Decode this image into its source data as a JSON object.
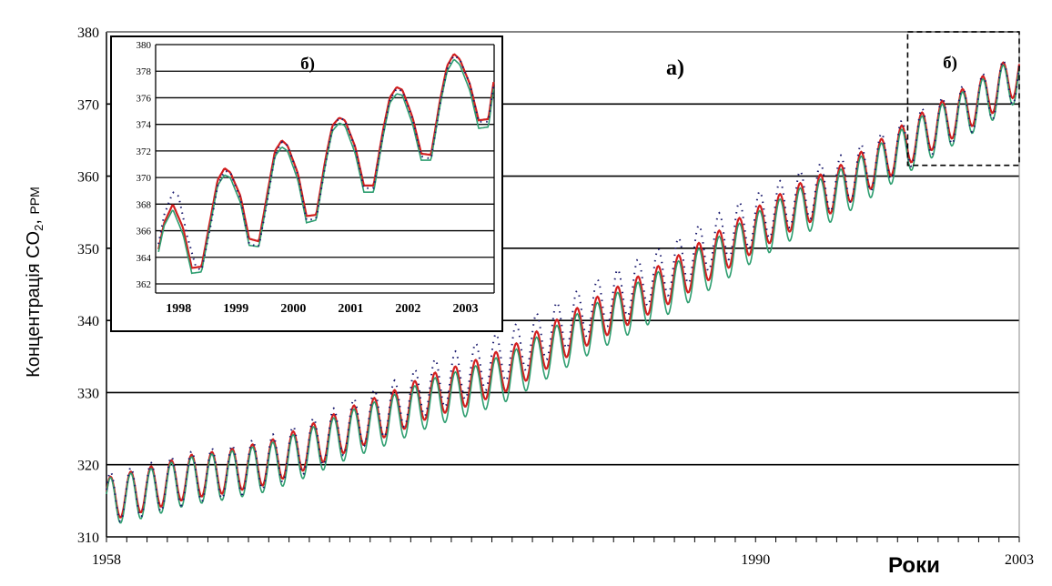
{
  "chart_data": [
    {
      "type": "line",
      "panel_label": "а)",
      "xlabel": "Роки",
      "ylabel": {
        "prefix": "Концентрація CO",
        "sub": "2",
        "suffix": ", ",
        "unit": "PPM"
      },
      "x_tick_labels": [
        "1958",
        "1990",
        "2003"
      ],
      "y_tick_labels": [
        "310",
        "320",
        "330",
        "340",
        "350",
        "360",
        "370",
        "380"
      ],
      "xlim": [
        1958,
        2003
      ],
      "ylim": [
        310,
        380
      ],
      "grid": "horizontal",
      "zoom_box_label": "б)",
      "zoom_box_range": {
        "x": [
          1997.5,
          2003
        ],
        "y": [
          361.5,
          380
        ]
      },
      "series": [
        {
          "color": "#d21f1f",
          "style": "solid",
          "seasonal_amplitude": 3.0,
          "x": [
            1958,
            1960,
            1962,
            1964,
            1966,
            1968,
            1970,
            1972,
            1974,
            1976,
            1978,
            1980,
            1982,
            1984,
            1986,
            1988,
            1990,
            1992,
            1994,
            1996,
            1998,
            2000,
            2002,
            2003
          ],
          "y": [
            315.2,
            316.6,
            318.3,
            319.1,
            320.3,
            322.5,
            325.0,
            327.1,
            329.6,
            331.3,
            333.5,
            336.8,
            340.0,
            342.8,
            345.7,
            349.1,
            352.6,
            355.8,
            358.2,
            361.8,
            365.5,
            368.7,
            372.3,
            374.5
          ]
        },
        {
          "color": "#2e9e70",
          "style": "solid",
          "seasonal_amplitude": 3.3,
          "x": [
            1958,
            1960,
            1962,
            1964,
            1966,
            1968,
            1970,
            1972,
            1974,
            1976,
            1978,
            1980,
            1982,
            1984,
            1986,
            1988,
            1990,
            1992,
            1994,
            1996,
            1998,
            2000,
            2002,
            2003
          ],
          "y": [
            314.8,
            316.0,
            317.7,
            318.5,
            319.6,
            321.7,
            324.2,
            326.2,
            328.6,
            330.2,
            332.4,
            335.7,
            338.9,
            341.7,
            344.6,
            348.0,
            351.6,
            354.8,
            357.3,
            360.9,
            364.7,
            368.0,
            371.6,
            373.9
          ]
        },
        {
          "color": "#1a1a6e",
          "style": "dotted",
          "seasonal_amplitude": 3.6,
          "x": [
            1958,
            1960,
            1962,
            1964,
            1966,
            1968,
            1970,
            1972,
            1974,
            1976,
            1978,
            1980,
            1982,
            1984,
            1986,
            1988,
            1990,
            1992,
            1994,
            1996,
            1998,
            2000,
            2002,
            2003
          ],
          "y": [
            315.3,
            316.5,
            318.2,
            319.0,
            320.4,
            322.6,
            325.3,
            327.8,
            330.8,
            333.0,
            335.6,
            338.6,
            341.8,
            344.6,
            347.5,
            351.0,
            354.0,
            356.9,
            359.0,
            362.0,
            365.5,
            368.5,
            372.0,
            374.2
          ]
        }
      ]
    },
    {
      "type": "line",
      "panel_label": "б)",
      "x_tick_labels": [
        "1998",
        "1999",
        "2000",
        "2001",
        "2002",
        "2003"
      ],
      "y_tick_labels": [
        "362",
        "364",
        "366",
        "368",
        "370",
        "372",
        "374",
        "376",
        "378",
        "380"
      ],
      "xlim": [
        1997.7,
        2003.6
      ],
      "ylim": [
        362,
        380
      ],
      "grid": "horizontal",
      "series": [
        {
          "color": "#d21f1f",
          "style": "solid",
          "x": [
            1997.75,
            1997.85,
            1998.0,
            1998.18,
            1998.33,
            1998.5,
            1998.66,
            1998.78,
            1998.9,
            1999.0,
            1999.18,
            1999.33,
            1999.5,
            1999.66,
            1999.78,
            1999.9,
            2000.0,
            2000.18,
            2000.33,
            2000.5,
            2000.66,
            2000.78,
            2000.9,
            2001.0,
            2001.18,
            2001.33,
            2001.5,
            2001.66,
            2001.78,
            2001.9,
            2002.0,
            2002.18,
            2002.33,
            2002.5,
            2002.66,
            2002.78,
            2002.9,
            2003.0,
            2003.18,
            2003.33,
            2003.5,
            2003.6
          ],
          "y": [
            364.6,
            366.6,
            368.0,
            366.2,
            363.2,
            363.3,
            367.0,
            369.8,
            370.7,
            370.4,
            368.6,
            365.4,
            365.2,
            369.1,
            372.0,
            372.8,
            372.4,
            370.3,
            367.1,
            367.2,
            371.4,
            373.9,
            374.5,
            374.3,
            372.3,
            369.4,
            369.4,
            373.5,
            376.0,
            376.8,
            376.6,
            374.5,
            371.8,
            371.7,
            375.9,
            378.4,
            379.3,
            378.9,
            377.0,
            374.3,
            374.4,
            377.5
          ]
        },
        {
          "color": "#2e9e70",
          "style": "solid",
          "x": [
            1997.75,
            1997.85,
            1998.0,
            1998.18,
            1998.33,
            1998.5,
            1998.66,
            1998.78,
            1998.9,
            1999.0,
            1999.18,
            1999.33,
            1999.5,
            1999.66,
            1999.78,
            1999.9,
            2000.0,
            2000.18,
            2000.33,
            2000.5,
            2000.66,
            2000.78,
            2000.9,
            2001.0,
            2001.18,
            2001.33,
            2001.5,
            2001.66,
            2001.78,
            2001.9,
            2002.0,
            2002.18,
            2002.33,
            2002.5,
            2002.66,
            2002.78,
            2002.9,
            2003.0,
            2003.18,
            2003.33,
            2003.5,
            2003.6
          ],
          "y": [
            364.4,
            366.4,
            367.6,
            365.7,
            362.8,
            362.9,
            366.6,
            369.4,
            370.2,
            370.0,
            368.1,
            364.9,
            364.8,
            368.7,
            371.6,
            372.3,
            372.0,
            369.8,
            366.6,
            366.8,
            371.0,
            373.5,
            374.1,
            373.9,
            371.8,
            368.9,
            368.9,
            373.0,
            375.6,
            376.3,
            376.2,
            374.0,
            371.3,
            371.3,
            375.5,
            378.0,
            378.9,
            378.5,
            376.5,
            373.7,
            373.8,
            377.0
          ]
        },
        {
          "color": "#1a1a6e",
          "style": "dotted",
          "x": [
            1997.75,
            1997.85,
            1998.0,
            1998.1,
            1998.25,
            1998.4,
            1998.5,
            1998.66,
            1998.78,
            1998.9,
            1999.0,
            1999.18,
            1999.33,
            1999.5,
            1999.66,
            1999.78,
            1999.9,
            2000.0,
            2000.18,
            2000.33,
            2000.5,
            2000.66,
            2000.78,
            2000.9,
            2001.0,
            2001.18,
            2001.33,
            2001.5,
            2001.66,
            2001.78,
            2001.9,
            2002.0,
            2002.18,
            2002.33,
            2002.5,
            2002.66,
            2002.78,
            2002.9,
            2003.0,
            2003.18,
            2003.33,
            2003.5,
            2003.6
          ],
          "y": [
            365.0,
            367.2,
            368.9,
            368.6,
            365.6,
            363.3,
            363.0,
            366.4,
            369.4,
            370.5,
            370.4,
            368.4,
            365.0,
            364.8,
            368.6,
            371.7,
            372.7,
            372.4,
            370.2,
            366.8,
            366.9,
            371.0,
            373.7,
            374.5,
            374.3,
            372.2,
            369.2,
            369.2,
            373.2,
            375.8,
            376.7,
            376.5,
            374.4,
            371.6,
            371.4,
            375.6,
            378.2,
            379.2,
            378.9,
            377.0,
            374.2,
            374.2,
            377.3
          ]
        }
      ]
    }
  ]
}
